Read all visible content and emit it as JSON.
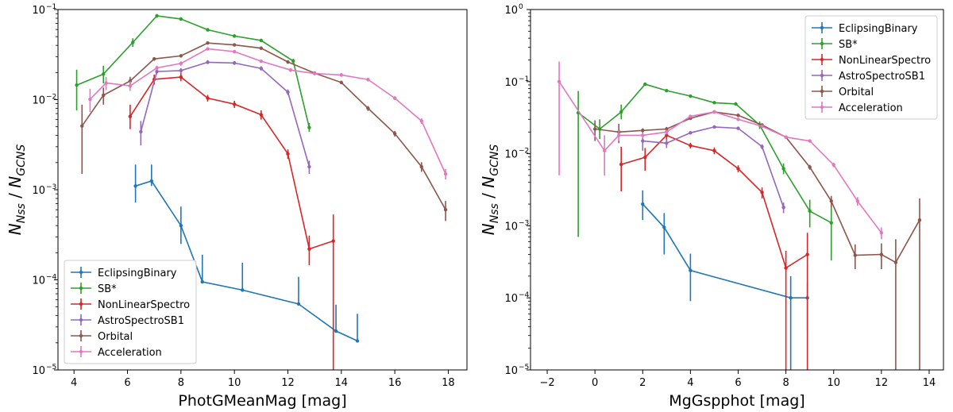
{
  "chart_data": [
    {
      "type": "line",
      "title": "",
      "xlabel": "PhotGMeanMag [mag]",
      "ylabel": {
        "base": "N",
        "sub1": "Nss",
        "sep": " / ",
        "base2": "N",
        "sub2": "GCNS"
      },
      "xscale": "linear",
      "yscale": "log",
      "xlim": [
        3.4,
        18.7
      ],
      "ylim": [
        1e-05,
        0.1
      ],
      "xticks": [
        4,
        6,
        8,
        10,
        12,
        14,
        16,
        18
      ],
      "xtick_labels": [
        "4",
        "6",
        "8",
        "10",
        "12",
        "14",
        "16",
        "18"
      ],
      "yticks": [
        {
          "value": 1e-05,
          "mant": "10",
          "exp": "−5"
        },
        {
          "value": 0.0001,
          "mant": "10",
          "exp": "−4"
        },
        {
          "value": 0.001,
          "mant": "10",
          "exp": "−3"
        },
        {
          "value": 0.01,
          "mant": "10",
          "exp": "−2"
        },
        {
          "value": 0.1,
          "mant": "10",
          "exp": "−1"
        }
      ],
      "legend_position": "lower-left",
      "series": [
        {
          "name": "EclipsingBinary",
          "color": "#1f77b4",
          "x": [
            6.3,
            6.9,
            8.0,
            8.8,
            10.3,
            12.4,
            13.8,
            14.6
          ],
          "y": [
            0.0011,
            0.00125,
            0.0004,
            9.5e-05,
            7.7e-05,
            5.4e-05,
            2.7e-05,
            2.1e-05
          ],
          "err_low": [
            0.00072,
            0.0011,
            0.00025,
            9.5e-05,
            7.7e-05,
            5.4e-05,
            2.7e-05,
            2.1e-05
          ],
          "err_high": [
            0.0019,
            0.0019,
            0.00065,
            0.00019,
            0.000155,
            0.000108,
            5.3e-05,
            4.2e-05
          ]
        },
        {
          "name": "SB*",
          "color": "#2ca02c",
          "x": [
            4.1,
            5.1,
            6.2,
            7.1,
            8.0,
            9.0,
            10.0,
            11.0,
            12.2,
            12.8
          ],
          "y": [
            0.0145,
            0.0192,
            0.0432,
            0.0851,
            0.0785,
            0.0596,
            0.0508,
            0.0454,
            0.0268,
            0.0049
          ],
          "err_low": [
            0.0076,
            0.0152,
            0.0385,
            0.081,
            0.075,
            0.057,
            0.0487,
            0.0435,
            0.0252,
            0.0044
          ],
          "err_high": [
            0.0215,
            0.0238,
            0.048,
            0.089,
            0.082,
            0.062,
            0.053,
            0.0473,
            0.0284,
            0.0055
          ]
        },
        {
          "name": "NonLinearSpectro",
          "color": "#d62728",
          "x": [
            6.1,
            7.0,
            8.0,
            9.0,
            10.0,
            11.0,
            12.0,
            12.8,
            13.7
          ],
          "y": [
            0.0065,
            0.0168,
            0.0178,
            0.0104,
            0.0089,
            0.0068,
            0.0025,
            0.00022,
            0.00027
          ],
          "err_low": [
            0.0047,
            0.0147,
            0.016,
            0.0095,
            0.0081,
            0.006,
            0.0022,
            0.000145,
            1e-05
          ],
          "err_high": [
            0.0088,
            0.019,
            0.0197,
            0.0113,
            0.0097,
            0.0076,
            0.0028,
            0.00031,
            0.00053
          ]
        },
        {
          "name": "AstroSpectroSB1",
          "color": "#9467bd",
          "x": [
            6.5,
            7.1,
            8.0,
            9.0,
            10.0,
            11.0,
            12.0,
            12.8
          ],
          "y": [
            0.0044,
            0.0205,
            0.021,
            0.026,
            0.0255,
            0.0222,
            0.0121,
            0.0018
          ],
          "err_low": [
            0.0031,
            0.0192,
            0.0197,
            0.0248,
            0.0243,
            0.021,
            0.0112,
            0.0015
          ],
          "err_high": [
            0.0058,
            0.0219,
            0.0224,
            0.0273,
            0.0267,
            0.0234,
            0.013,
            0.0021
          ]
        },
        {
          "name": "Orbital",
          "color": "#8c564b",
          "x": [
            4.3,
            5.1,
            6.1,
            7.0,
            8.0,
            9.0,
            10.0,
            11.0,
            12.0,
            13.0,
            14.0,
            15.0,
            16.0,
            17.0,
            17.9
          ],
          "y": [
            0.0051,
            0.0112,
            0.0161,
            0.0283,
            0.0306,
            0.0425,
            0.0405,
            0.0372,
            0.0262,
            0.0197,
            0.0155,
            0.008,
            0.0042,
            0.0018,
            0.0006
          ],
          "err_low": [
            0.0015,
            0.0088,
            0.0143,
            0.027,
            0.0293,
            0.041,
            0.039,
            0.0358,
            0.025,
            0.0189,
            0.0148,
            0.0075,
            0.0039,
            0.00158,
            0.00045
          ],
          "err_high": [
            0.0088,
            0.0136,
            0.0179,
            0.0296,
            0.0319,
            0.044,
            0.042,
            0.0386,
            0.0274,
            0.0205,
            0.0162,
            0.0085,
            0.0045,
            0.00202,
            0.00075
          ]
        },
        {
          "name": "Acceleration",
          "color": "#e377c2",
          "x": [
            4.6,
            5.2,
            6.1,
            7.1,
            8.0,
            9.0,
            10.0,
            11.0,
            12.1,
            13.0,
            14.0,
            15.0,
            16.0,
            17.0,
            17.9
          ],
          "y": [
            0.0101,
            0.0153,
            0.0142,
            0.0225,
            0.0252,
            0.0366,
            0.0341,
            0.0267,
            0.0213,
            0.0195,
            0.0188,
            0.0167,
            0.0104,
            0.0058,
            0.0015
          ],
          "err_low": [
            0.0073,
            0.0128,
            0.0125,
            0.0212,
            0.0238,
            0.0352,
            0.0328,
            0.0256,
            0.0203,
            0.0186,
            0.0179,
            0.0159,
            0.0099,
            0.0054,
            0.0013
          ],
          "err_high": [
            0.0132,
            0.0178,
            0.016,
            0.0238,
            0.0266,
            0.0381,
            0.0354,
            0.0278,
            0.0223,
            0.0204,
            0.0197,
            0.0175,
            0.0109,
            0.0062,
            0.0017
          ]
        }
      ]
    },
    {
      "type": "line",
      "title": "",
      "xlabel": "MgGspphot [mag]",
      "ylabel": {
        "base": "N",
        "sub1": "Nss",
        "sep": " / ",
        "base2": "N",
        "sub2": "GCNS"
      },
      "xscale": "linear",
      "yscale": "log",
      "xlim": [
        -2.7,
        14.6
      ],
      "ylim": [
        1e-05,
        1
      ],
      "xticks": [
        -2,
        0,
        2,
        4,
        6,
        8,
        10,
        12,
        14
      ],
      "xtick_labels": [
        "−2",
        "0",
        "2",
        "4",
        "6",
        "8",
        "10",
        "12",
        "14"
      ],
      "yticks": [
        {
          "value": 1e-05,
          "mant": "10",
          "exp": "−5"
        },
        {
          "value": 0.0001,
          "mant": "10",
          "exp": "−4"
        },
        {
          "value": 0.001,
          "mant": "10",
          "exp": "−3"
        },
        {
          "value": 0.01,
          "mant": "10",
          "exp": "−2"
        },
        {
          "value": 0.1,
          "mant": "10",
          "exp": "−1"
        },
        {
          "value": 1,
          "mant": "10",
          "exp": "0"
        }
      ],
      "legend_position": "upper-right",
      "series": [
        {
          "name": "EclipsingBinary",
          "color": "#1f77b4",
          "x": [
            2.0,
            2.9,
            4.0,
            8.2,
            8.9
          ],
          "y": [
            0.002,
            0.00095,
            0.00024,
            0.0001,
            0.0001
          ],
          "err_low": [
            0.0012,
            0.0004,
            9e-05,
            1e-05,
            3.5e-05
          ],
          "err_high": [
            0.0031,
            0.0015,
            0.00041,
            0.0002,
            0.000165
          ]
        },
        {
          "name": "SB*",
          "color": "#2ca02c",
          "x": [
            -0.7,
            0.2,
            1.1,
            2.1,
            3.0,
            4.0,
            5.0,
            5.9,
            6.9,
            7.9,
            9.0,
            9.9
          ],
          "y": [
            0.037,
            0.022,
            0.038,
            0.092,
            0.075,
            0.063,
            0.051,
            0.049,
            0.025,
            0.0062,
            0.0016,
            0.0011
          ],
          "err_low": [
            0.0007,
            0.016,
            0.03,
            0.089,
            0.072,
            0.061,
            0.049,
            0.047,
            0.022,
            0.0052,
            0.00095,
            0.00033
          ],
          "err_high": [
            0.074,
            0.03,
            0.048,
            0.096,
            0.078,
            0.066,
            0.053,
            0.051,
            0.028,
            0.0073,
            0.0023,
            0.0019
          ]
        },
        {
          "name": "NonLinearSpectro",
          "color": "#d62728",
          "x": [
            1.1,
            2.1,
            3.0,
            4.0,
            5.0,
            6.0,
            7.0,
            8.0,
            8.9
          ],
          "y": [
            0.0071,
            0.0089,
            0.018,
            0.013,
            0.011,
            0.0062,
            0.0029,
            0.00026,
            0.0004
          ],
          "err_low": [
            0.003,
            0.0058,
            0.015,
            0.0118,
            0.0098,
            0.0055,
            0.0024,
            1e-05,
            1e-05
          ],
          "err_high": [
            0.0125,
            0.012,
            0.021,
            0.0142,
            0.0122,
            0.0069,
            0.0034,
            0.00045,
            0.0008
          ]
        },
        {
          "name": "AstroSpectroSB1",
          "color": "#9467bd",
          "x": [
            2.0,
            3.0,
            4.0,
            5.0,
            6.0,
            7.0,
            7.9
          ],
          "y": [
            0.015,
            0.014,
            0.0195,
            0.0235,
            0.0225,
            0.0125,
            0.0018
          ],
          "err_low": [
            0.011,
            0.012,
            0.0185,
            0.0225,
            0.0215,
            0.0115,
            0.0015
          ],
          "err_high": [
            0.019,
            0.016,
            0.0205,
            0.0245,
            0.0235,
            0.0135,
            0.0021
          ]
        },
        {
          "name": "Orbital",
          "color": "#8c564b",
          "x": [
            0.0,
            1.0,
            2.0,
            3.0,
            4.0,
            5.0,
            6.0,
            7.0,
            8.0,
            9.0,
            9.9,
            10.9,
            12.0,
            12.6,
            13.6
          ],
          "y": [
            0.022,
            0.02,
            0.021,
            0.022,
            0.031,
            0.038,
            0.034,
            0.025,
            0.017,
            0.0065,
            0.0022,
            0.00039,
            0.0004,
            0.00031,
            0.0012
          ],
          "err_low": [
            0.015,
            0.014,
            0.0195,
            0.0205,
            0.0295,
            0.0365,
            0.0325,
            0.0238,
            0.0162,
            0.006,
            0.0018,
            0.00025,
            0.00025,
            1e-05,
            1e-05
          ],
          "err_high": [
            0.029,
            0.026,
            0.0225,
            0.0235,
            0.0325,
            0.0395,
            0.0355,
            0.0262,
            0.0178,
            0.007,
            0.0026,
            0.00055,
            0.00057,
            0.00065,
            0.0024
          ]
        },
        {
          "name": "Acceleration",
          "color": "#e377c2",
          "x": [
            -1.5,
            0.4,
            1.0,
            2.0,
            3.0,
            4.0,
            5.0,
            6.0,
            7.0,
            8.0,
            9.0,
            10.0,
            11.0,
            12.0
          ],
          "y": [
            0.1,
            0.011,
            0.018,
            0.018,
            0.02,
            0.033,
            0.038,
            0.03,
            0.024,
            0.017,
            0.015,
            0.007,
            0.0022,
            0.0008
          ],
          "err_low": [
            0.005,
            0.005,
            0.015,
            0.0165,
            0.0185,
            0.0315,
            0.0365,
            0.0288,
            0.0228,
            0.0162,
            0.0143,
            0.0065,
            0.0019,
            0.00065
          ],
          "err_high": [
            0.19,
            0.018,
            0.021,
            0.0195,
            0.0215,
            0.0345,
            0.0395,
            0.0312,
            0.0252,
            0.0178,
            0.0157,
            0.0075,
            0.0025,
            0.00095
          ]
        }
      ]
    }
  ]
}
